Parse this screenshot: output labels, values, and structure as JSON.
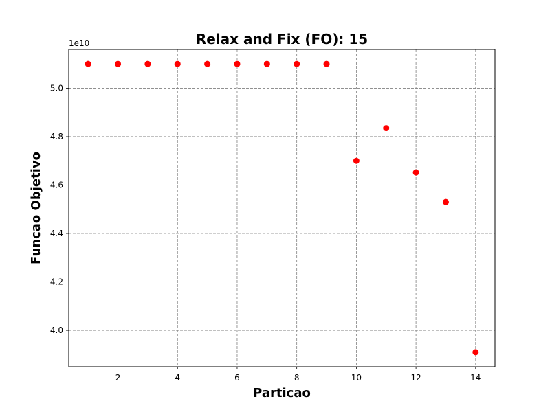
{
  "chart_data": {
    "type": "scatter",
    "title": "Relax and Fix (FO): 15",
    "xlabel": "Particao",
    "ylabel": "Funcao Objetivo",
    "y_offset_label": "1e10",
    "xlim": [
      0.35,
      14.65
    ],
    "ylim": [
      3.85,
      5.16
    ],
    "grid": true,
    "marker_color": "#ff0000",
    "x_ticks": [
      2,
      4,
      6,
      8,
      10,
      12,
      14
    ],
    "x_tick_labels": [
      "2",
      "4",
      "6",
      "8",
      "10",
      "12",
      "14"
    ],
    "y_ticks": [
      4.0,
      4.2,
      4.4,
      4.6,
      4.8,
      5.0
    ],
    "y_tick_labels": [
      "4.0",
      "4.2",
      "4.4",
      "4.6",
      "4.8",
      "5.0"
    ],
    "x": [
      1,
      2,
      3,
      4,
      5,
      6,
      7,
      8,
      9,
      10,
      11,
      12,
      13,
      14
    ],
    "y": [
      5.1,
      5.1,
      5.1,
      5.1,
      5.1,
      5.1,
      5.1,
      5.1,
      5.1,
      4.7,
      4.835,
      4.652,
      4.53,
      3.91
    ]
  }
}
